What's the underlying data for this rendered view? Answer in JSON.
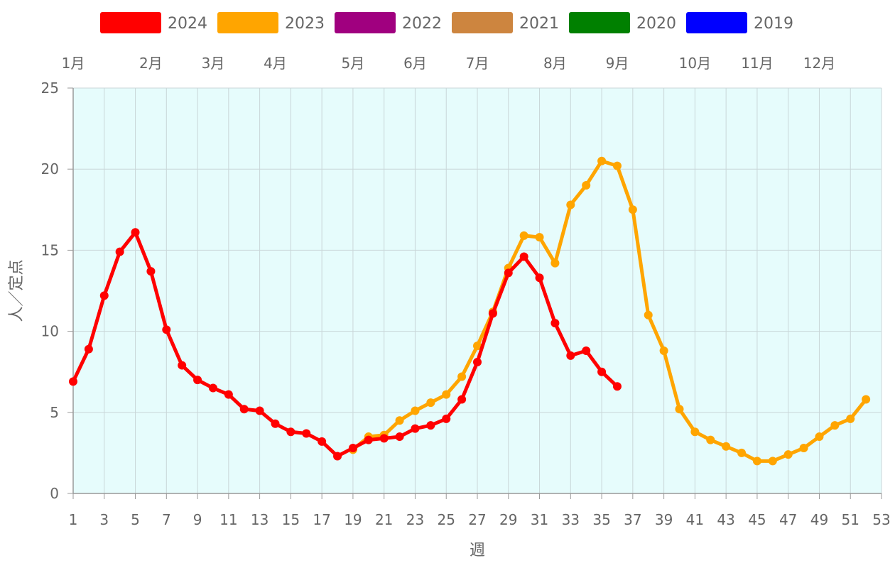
{
  "chart_data": {
    "type": "line",
    "xlabel": "週",
    "ylabel": "人／定点",
    "xlim": [
      1,
      53
    ],
    "ylim": [
      0,
      25
    ],
    "y_ticks": [
      0,
      5,
      10,
      15,
      20,
      25
    ],
    "x_ticks": [
      1,
      3,
      5,
      7,
      9,
      11,
      13,
      15,
      17,
      19,
      21,
      23,
      25,
      27,
      29,
      31,
      33,
      35,
      37,
      39,
      41,
      43,
      45,
      47,
      49,
      51,
      53
    ],
    "months": [
      {
        "label": "1月",
        "week": 1
      },
      {
        "label": "2月",
        "week": 6
      },
      {
        "label": "3月",
        "week": 10
      },
      {
        "label": "4月",
        "week": 14
      },
      {
        "label": "5月",
        "week": 19
      },
      {
        "label": "6月",
        "week": 23
      },
      {
        "label": "7月",
        "week": 27
      },
      {
        "label": "8月",
        "week": 32
      },
      {
        "label": "9月",
        "week": 36
      },
      {
        "label": "10月",
        "week": 41
      },
      {
        "label": "11月",
        "week": 45
      },
      {
        "label": "12月",
        "week": 49
      }
    ],
    "grid": true,
    "plot_background": "#e6fcfc",
    "legend_position": "top",
    "legend": [
      {
        "name": "2024",
        "color": "#ff0000"
      },
      {
        "name": "2023",
        "color": "#ffa500"
      },
      {
        "name": "2022",
        "color": "#a0007f"
      },
      {
        "name": "2021",
        "color": "#cd853f"
      },
      {
        "name": "2020",
        "color": "#008000"
      },
      {
        "name": "2019",
        "color": "#0000ff"
      }
    ],
    "series": [
      {
        "name": "2023",
        "color": "#ffa500",
        "x": [
          19,
          20,
          21,
          22,
          23,
          24,
          25,
          26,
          27,
          28,
          29,
          30,
          31,
          32,
          33,
          34,
          35,
          36,
          37,
          38,
          39,
          40,
          41,
          42,
          43,
          44,
          45,
          46,
          47,
          48,
          49,
          50,
          51,
          52
        ],
        "values": [
          2.7,
          3.5,
          3.6,
          4.5,
          5.1,
          5.6,
          6.1,
          7.2,
          9.1,
          11.2,
          13.9,
          15.9,
          15.8,
          14.2,
          17.8,
          19.0,
          20.5,
          20.2,
          17.5,
          11.0,
          8.8,
          5.2,
          3.8,
          3.3,
          2.9,
          2.5,
          2.0,
          2.0,
          2.4,
          2.8,
          3.5,
          4.2,
          4.6,
          5.8
        ]
      },
      {
        "name": "2024",
        "color": "#ff0000",
        "x": [
          1,
          2,
          3,
          4,
          5,
          6,
          7,
          8,
          9,
          10,
          11,
          12,
          13,
          14,
          15,
          16,
          17,
          18,
          19,
          20,
          21,
          22,
          23,
          24,
          25,
          26,
          27,
          28,
          29,
          30,
          31,
          32,
          33,
          34,
          35,
          36
        ],
        "values": [
          6.9,
          8.9,
          12.2,
          14.9,
          16.1,
          13.7,
          10.1,
          7.9,
          7.0,
          6.5,
          6.1,
          5.2,
          5.1,
          4.3,
          3.8,
          3.7,
          3.2,
          2.3,
          2.8,
          3.3,
          3.4,
          3.5,
          4.0,
          4.2,
          4.6,
          5.8,
          8.1,
          11.1,
          13.6,
          14.6,
          13.3,
          10.5,
          8.5,
          8.8,
          7.5,
          6.6
        ]
      }
    ]
  }
}
